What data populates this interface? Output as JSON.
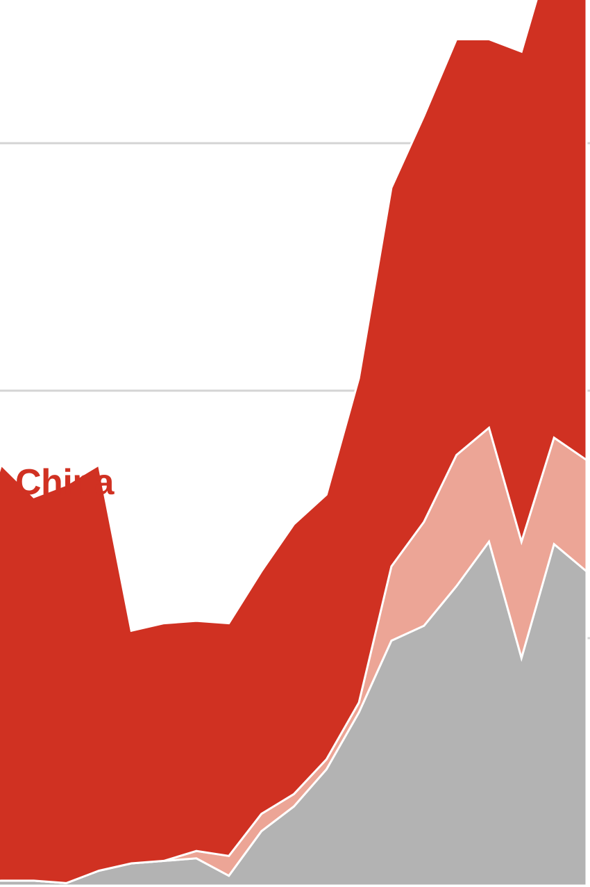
{
  "chart_data": {
    "type": "area",
    "stacked": true,
    "grid": true,
    "title": "",
    "xlabel": "",
    "ylabel": "",
    "x": [
      0,
      1,
      2,
      3,
      4,
      5,
      6,
      7,
      8,
      9,
      10,
      11,
      12,
      13,
      14,
      15,
      16,
      17,
      18,
      19
    ],
    "ylim": [
      0,
      4
    ],
    "gridlines": [
      1,
      2,
      3,
      4
    ],
    "series": [
      {
        "name": "",
        "color": "#b3b3b3",
        "values": [
          0.01,
          0.02,
          0.02,
          0.01,
          0.06,
          0.09,
          0.1,
          0.11,
          0.04,
          0.22,
          0.32,
          0.47,
          0.7,
          0.99,
          1.05,
          1.21,
          1.39,
          0.92,
          1.38,
          1.27
        ]
      },
      {
        "name": "",
        "color": "#eca596",
        "values": [
          0.0,
          0.0,
          0.0,
          0.0,
          0.0,
          0.0,
          0.0,
          0.03,
          0.08,
          0.07,
          0.05,
          0.04,
          0.04,
          0.3,
          0.42,
          0.53,
          0.46,
          0.47,
          0.43,
          0.45
        ]
      },
      {
        "name": "China",
        "color": "#d03122",
        "values": [
          1.28,
          1.68,
          1.55,
          1.61,
          1.64,
          0.94,
          0.96,
          0.93,
          0.94,
          0.98,
          1.09,
          1.07,
          1.31,
          1.53,
          1.64,
          1.68,
          1.57,
          1.98,
          2.01,
          2.21
        ]
      }
    ]
  }
}
